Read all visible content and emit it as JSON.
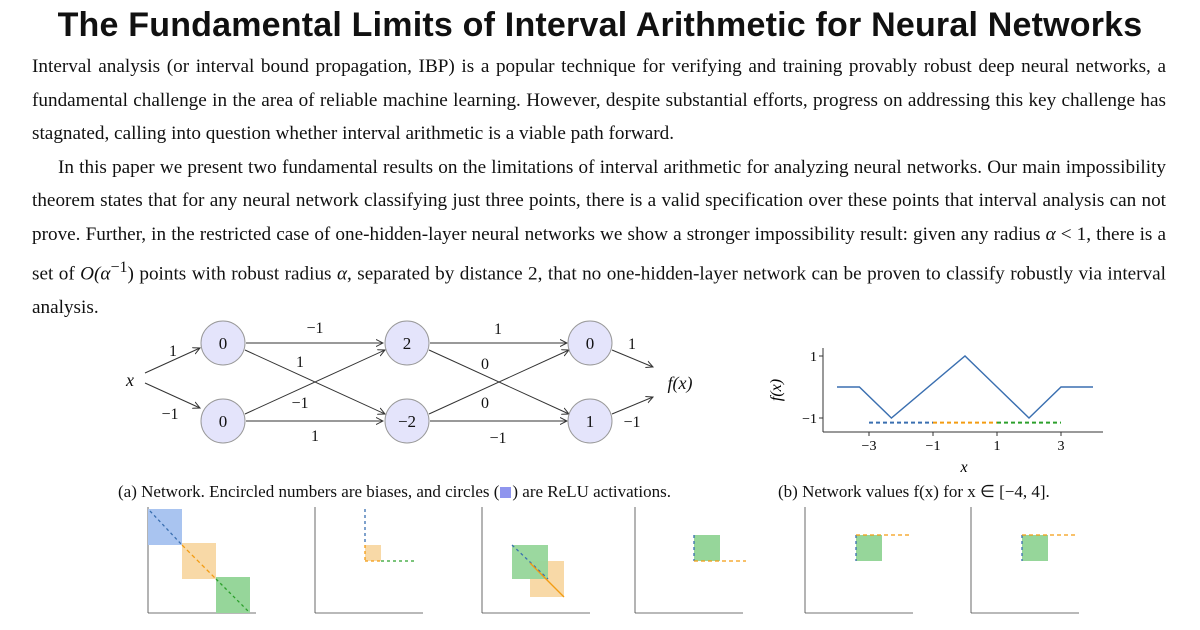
{
  "title": "The Fundamental Limits of Interval Arithmetic for Neural Networks",
  "abstract": {
    "p1": "Interval analysis (or interval bound propagation, IBP) is a popular technique for verifying and training provably robust deep neural networks, a fundamental challenge in the area of reliable machine learning. However, despite substantial efforts, progress on addressing this key challenge has stagnated, calling into question whether interval arithmetic is a viable path forward.",
    "p2a": "In this paper we present two fundamental results on the limitations of interval arithmetic for analyzing neural networks. Our main impossibility theorem states that for any neural network classifying just three points, there is a valid specification over these points that interval analysis can not prove. Further, in the restricted case of one-hidden-layer neural networks we show a stronger impossibility result: given any radius ",
    "alpha": "α",
    "p2b": " < 1, there is a set of ",
    "bigO": "O(α",
    "sup": "−1",
    "p2c": ") points with robust radius ",
    "p2d": ", separated by distance 2, that no one-hidden-layer network can be proven to classify robustly via interval analysis."
  },
  "figure_a": {
    "input_label": "x",
    "output_label": "f(x)",
    "nodes": [
      "0",
      "0",
      "2",
      "−2",
      "0",
      "1"
    ],
    "weights": {
      "in_top": "1",
      "in_bot": "−1",
      "l1_top_top": "−1",
      "l1_top_cross": "1",
      "l1_bot_cross": "−1",
      "l1_bot_bot": "1",
      "l2_top_top": "1",
      "l2_top_cross": "0",
      "l2_bot_cross": "0",
      "l2_bot_bot": "−1",
      "out_top": "1",
      "out_bot": "−1"
    },
    "caption_before": "(a) Network. Encircled numbers are biases, and circles (",
    "caption_after": ") are ReLU activations.",
    "relu_color": "#8f95ee"
  },
  "figure_b": {
    "caption": "(b) Network values f(x) for x ∈ [−4, 4].",
    "chart_data": {
      "type": "line",
      "xlabel": "x",
      "ylabel": "f(x)",
      "xlim": [
        -4,
        4
      ],
      "ylim": [
        -1.2,
        1.1
      ],
      "xticks": [
        "−3",
        "−1",
        "1",
        "3"
      ],
      "yticks": [
        "1",
        "−1"
      ],
      "series": [
        {
          "x": [
            -4,
            -3.3,
            -2.3,
            0,
            2,
            3,
            4
          ],
          "y": [
            0,
            0,
            -1,
            1,
            -1,
            0,
            0
          ],
          "color": "#3a6fb0"
        }
      ],
      "intervals": [
        {
          "from": -3,
          "to": -1,
          "y": -1.15,
          "color": "#3a6fb0"
        },
        {
          "from": -1,
          "to": 1,
          "y": -1.15,
          "color": "#f39c12"
        },
        {
          "from": 1,
          "to": 3,
          "y": -1.15,
          "color": "#2ca02c"
        }
      ]
    }
  },
  "colors": {
    "blue": "#3a6fb0",
    "orange": "#f39c12",
    "green": "#2ca02c"
  }
}
